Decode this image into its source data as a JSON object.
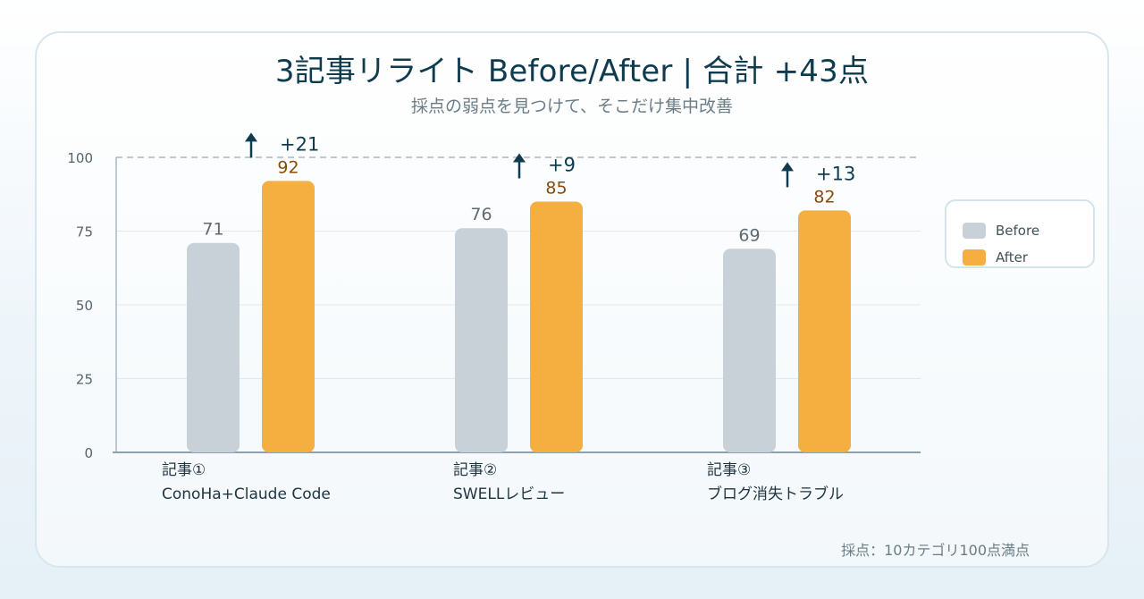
{
  "header": {
    "title": "3記事リライト Before/After | 合計 +43点",
    "subtitle": "採点の弱点を見つけて、そこだけ集中改善"
  },
  "chart_data": {
    "type": "bar",
    "categories": [
      {
        "line1": "記事①",
        "line2": "ConoHa+Claude Code"
      },
      {
        "line1": "記事②",
        "line2": "SWELLレビュー"
      },
      {
        "line1": "記事③",
        "line2": "ブログ消失トラブル"
      }
    ],
    "series": [
      {
        "name": "Before",
        "values": [
          71,
          76,
          69
        ],
        "color": "#c8d0d8",
        "label_color": "#5f6a72"
      },
      {
        "name": "After",
        "values": [
          92,
          85,
          82
        ],
        "color": "#f5ae40",
        "label_color": "#8a4b0a"
      }
    ],
    "deltas": [
      "+21",
      "+9",
      "+13"
    ],
    "delta_color": "#0f3b4f",
    "yticks": [
      "0",
      "25",
      "50",
      "75",
      "100"
    ],
    "ylim": [
      0,
      100
    ],
    "reference_line": 100,
    "grid": true,
    "legend_position": "right"
  },
  "footnote": "採点：10カテゴリ100点満点"
}
